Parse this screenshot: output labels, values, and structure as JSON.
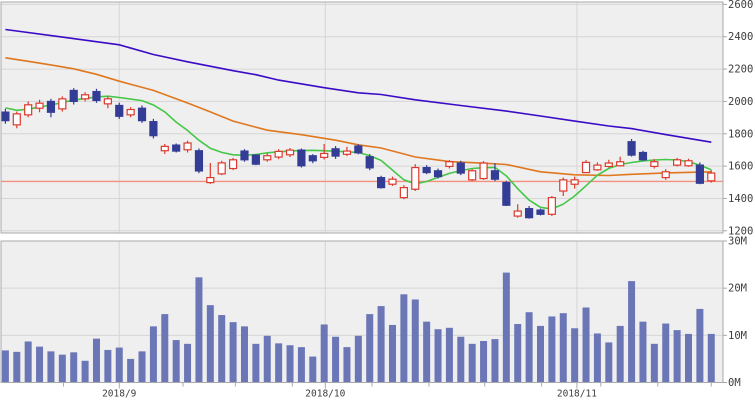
{
  "chart_data": {
    "type": "candlestick+volume",
    "title": "",
    "legend_position": "none",
    "grid": true,
    "price_axis": {
      "side": "right",
      "ticks": [
        2600,
        2400,
        2200,
        2000,
        1800,
        1600,
        1400,
        1200
      ],
      "ylim": [
        1190,
        2615
      ]
    },
    "volume_axis": {
      "side": "right",
      "ticks": [
        {
          "v": 30,
          "label": "30M"
        },
        {
          "v": 20,
          "label": "20M"
        },
        {
          "v": 10,
          "label": "10M"
        },
        {
          "v": 0,
          "label": "0M"
        }
      ],
      "ylim": [
        0,
        30
      ]
    },
    "x_axis": {
      "month_labels": [
        {
          "label": "2018/9",
          "index": 10
        },
        {
          "label": "2018/10",
          "index": 28.1
        },
        {
          "label": "2018/11",
          "index": 50.2
        }
      ],
      "week_tick_indices": [
        5.1,
        15.6,
        20.2,
        25.2,
        32.2,
        37.2,
        42.1,
        47.1,
        52.3,
        57.3,
        62
      ]
    },
    "reference_line": {
      "price": 1505
    },
    "candles_ohlc": [
      [
        1934,
        1954,
        1862,
        1881
      ],
      [
        1855,
        1937,
        1834,
        1923
      ],
      [
        1917,
        2000,
        1902,
        1979
      ],
      [
        1958,
        2010,
        1933,
        1989
      ],
      [
        2000,
        2016,
        1902,
        1933
      ],
      [
        1954,
        2031,
        1937,
        2016
      ],
      [
        2068,
        2082,
        1981,
        2000
      ],
      [
        2016,
        2057,
        2000,
        2041
      ],
      [
        2061,
        2078,
        1991,
        2006
      ],
      [
        1985,
        2031,
        1958,
        2016
      ],
      [
        1975,
        1992,
        1892,
        1908
      ],
      [
        1917,
        1964,
        1902,
        1950
      ],
      [
        1958,
        1975,
        1867,
        1881
      ],
      [
        1875,
        1892,
        1771,
        1788
      ],
      [
        1695,
        1737,
        1675,
        1722
      ],
      [
        1730,
        1740,
        1684,
        1693
      ],
      [
        1701,
        1757,
        1684,
        1743
      ],
      [
        1695,
        1709,
        1556,
        1570
      ],
      [
        1498,
        1619,
        1490,
        1529
      ],
      [
        1552,
        1633,
        1544,
        1620
      ],
      [
        1585,
        1651,
        1575,
        1639
      ],
      [
        1693,
        1705,
        1627,
        1639
      ],
      [
        1668,
        1674,
        1606,
        1612
      ],
      [
        1639,
        1678,
        1627,
        1664
      ],
      [
        1656,
        1705,
        1643,
        1691
      ],
      [
        1670,
        1712,
        1656,
        1699
      ],
      [
        1699,
        1709,
        1591,
        1602
      ],
      [
        1664,
        1674,
        1618,
        1633
      ],
      [
        1654,
        1737,
        1641,
        1678
      ],
      [
        1707,
        1724,
        1645,
        1662
      ],
      [
        1673,
        1719,
        1662,
        1693
      ],
      [
        1724,
        1735,
        1673,
        1682
      ],
      [
        1658,
        1674,
        1575,
        1589
      ],
      [
        1529,
        1540,
        1461,
        1467
      ],
      [
        1488,
        1535,
        1477,
        1519
      ],
      [
        1405,
        1482,
        1395,
        1467
      ],
      [
        1457,
        1612,
        1446,
        1591
      ],
      [
        1591,
        1606,
        1550,
        1560
      ],
      [
        1571,
        1585,
        1523,
        1535
      ],
      [
        1598,
        1637,
        1585,
        1627
      ],
      [
        1619,
        1633,
        1544,
        1557
      ],
      [
        1515,
        1581,
        1507,
        1571
      ],
      [
        1523,
        1631,
        1515,
        1619
      ],
      [
        1571,
        1618,
        1507,
        1519
      ],
      [
        1498,
        1509,
        1353,
        1358
      ],
      [
        1291,
        1364,
        1281,
        1322
      ],
      [
        1337,
        1353,
        1275,
        1281
      ],
      [
        1328,
        1337,
        1295,
        1302
      ],
      [
        1302,
        1415,
        1291,
        1405
      ],
      [
        1446,
        1529,
        1415,
        1515
      ],
      [
        1488,
        1535,
        1461,
        1515
      ],
      [
        1560,
        1637,
        1557,
        1623
      ],
      [
        1577,
        1623,
        1571,
        1606
      ],
      [
        1598,
        1639,
        1591,
        1619
      ],
      [
        1602,
        1658,
        1598,
        1627
      ],
      [
        1751,
        1768,
        1659,
        1668
      ],
      [
        1684,
        1695,
        1633,
        1639
      ],
      [
        1598,
        1643,
        1585,
        1627
      ],
      [
        1529,
        1581,
        1515,
        1565
      ],
      [
        1606,
        1651,
        1598,
        1639
      ],
      [
        1602,
        1646,
        1596,
        1633
      ],
      [
        1606,
        1623,
        1488,
        1494
      ],
      [
        1509,
        1575,
        1498,
        1557
      ]
    ],
    "volumes_millions": [
      6.8,
      6.5,
      8.7,
      7.6,
      6.6,
      5.9,
      6.4,
      4.6,
      9.3,
      6.9,
      7.4,
      5.0,
      6.6,
      11.9,
      14.5,
      9.0,
      8.2,
      22.3,
      16.4,
      14.3,
      12.8,
      11.9,
      8.2,
      9.9,
      8.3,
      7.9,
      7.5,
      5.5,
      12.3,
      9.7,
      7.5,
      9.9,
      14.5,
      16.2,
      12.2,
      18.7,
      17.6,
      12.9,
      11.3,
      11.6,
      9.7,
      8.2,
      8.8,
      9.2,
      23.3,
      12.4,
      14.9,
      12.0,
      14.0,
      14.7,
      11.5,
      15.9,
      10.4,
      8.5,
      12.0,
      21.5,
      12.9,
      8.2,
      12.5,
      11.1,
      10.3,
      15.6,
      10.3
    ],
    "ma_short_green": [
      [
        0,
        1960
      ],
      [
        1,
        1945
      ],
      [
        2,
        1952
      ],
      [
        4,
        1978
      ],
      [
        6,
        2008
      ],
      [
        8,
        2028
      ],
      [
        9,
        2032
      ],
      [
        10,
        2024
      ],
      [
        12,
        2005
      ],
      [
        13,
        1978
      ],
      [
        14,
        1935
      ],
      [
        15,
        1872
      ],
      [
        16,
        1820
      ],
      [
        17,
        1760
      ],
      [
        18,
        1710
      ],
      [
        19,
        1685
      ],
      [
        20,
        1670
      ],
      [
        21,
        1667
      ],
      [
        22,
        1672
      ],
      [
        23,
        1682
      ],
      [
        25,
        1694
      ],
      [
        27,
        1698
      ],
      [
        29,
        1692
      ],
      [
        31,
        1684
      ],
      [
        32,
        1665
      ],
      [
        33,
        1635
      ],
      [
        34,
        1575
      ],
      [
        35,
        1515
      ],
      [
        36,
        1490
      ],
      [
        37,
        1505
      ],
      [
        38,
        1530
      ],
      [
        39,
        1555
      ],
      [
        40,
        1572
      ],
      [
        41,
        1585
      ],
      [
        42,
        1590
      ],
      [
        43,
        1592
      ],
      [
        44,
        1540
      ],
      [
        45,
        1460
      ],
      [
        46,
        1390
      ],
      [
        47,
        1345
      ],
      [
        48,
        1335
      ],
      [
        49,
        1365
      ],
      [
        50,
        1415
      ],
      [
        51,
        1478
      ],
      [
        52,
        1544
      ],
      [
        53,
        1586
      ],
      [
        54,
        1610
      ],
      [
        55,
        1622
      ],
      [
        56,
        1632
      ],
      [
        57,
        1638
      ],
      [
        58,
        1641
      ],
      [
        59,
        1638
      ],
      [
        60,
        1628
      ],
      [
        61,
        1605
      ],
      [
        62,
        1578
      ]
    ],
    "ma_mid_orange": [
      [
        0,
        2270
      ],
      [
        2,
        2248
      ],
      [
        4,
        2226
      ],
      [
        6,
        2202
      ],
      [
        8,
        2168
      ],
      [
        10,
        2125
      ],
      [
        13,
        2068
      ],
      [
        16,
        1990
      ],
      [
        18,
        1935
      ],
      [
        20,
        1878
      ],
      [
        23,
        1822
      ],
      [
        26,
        1794
      ],
      [
        29,
        1760
      ],
      [
        31,
        1732
      ],
      [
        33,
        1712
      ],
      [
        36,
        1656
      ],
      [
        39,
        1628
      ],
      [
        42,
        1618
      ],
      [
        44,
        1610
      ],
      [
        47,
        1565
      ],
      [
        50,
        1546
      ],
      [
        53,
        1542
      ],
      [
        55,
        1549
      ],
      [
        58,
        1558
      ],
      [
        62,
        1565
      ]
    ],
    "ma_long_purple": [
      [
        0,
        2445
      ],
      [
        5,
        2398
      ],
      [
        10,
        2350
      ],
      [
        13,
        2290
      ],
      [
        16,
        2245
      ],
      [
        20,
        2190
      ],
      [
        22,
        2165
      ],
      [
        24,
        2132
      ],
      [
        28,
        2085
      ],
      [
        31,
        2053
      ],
      [
        33,
        2043
      ],
      [
        36,
        2010
      ],
      [
        40,
        1975
      ],
      [
        44,
        1940
      ],
      [
        47,
        1910
      ],
      [
        50,
        1878
      ],
      [
        53,
        1848
      ],
      [
        55,
        1832
      ],
      [
        58,
        1795
      ],
      [
        62,
        1748
      ]
    ],
    "colors": {
      "up_candle": "#dc3a2e",
      "up_candle_fill": "#ffffff",
      "down_candle": "#343d96",
      "ma_short": "#45c747",
      "ma_mid": "#e0771e",
      "ma_long": "#3a0bc6",
      "volume_bar": "#6b76b7",
      "reference_line": "#f1907f",
      "plot_background": "#efefef",
      "grid_line": "#d6d6d6",
      "panel_border": "#a9a9a9",
      "axis_text": "#3d3d3d"
    }
  }
}
